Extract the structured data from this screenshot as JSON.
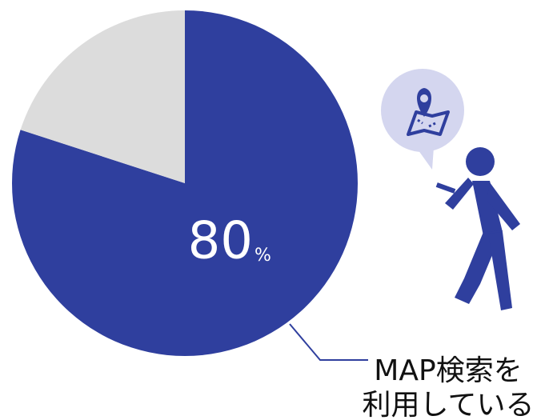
{
  "chart_data": {
    "type": "pie",
    "values": [
      80,
      20
    ],
    "colors": [
      "#2f3f9e",
      "#dcdcdc"
    ],
    "value_labels": [
      "80",
      null
    ],
    "value_suffix": "%",
    "annotation": [
      "MAP検索を",
      "利用している"
    ]
  }
}
